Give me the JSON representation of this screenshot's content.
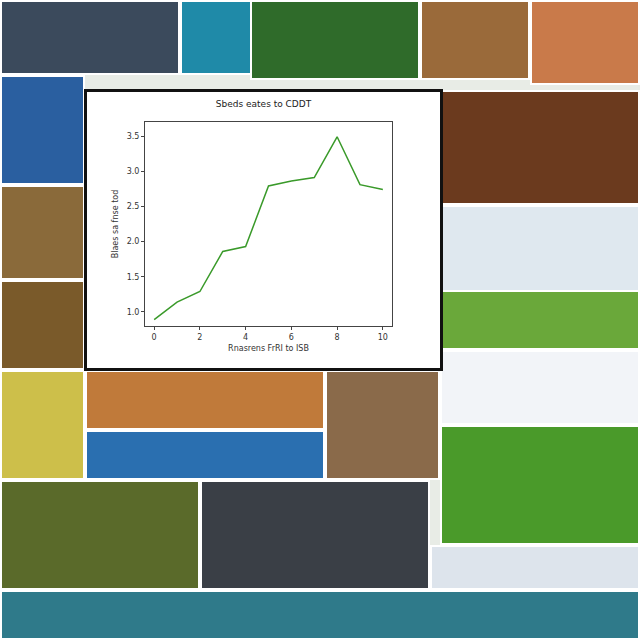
{
  "chart_data": {
    "type": "line",
    "title": "Sbeds eates to CDDT",
    "xlabel": "Rnasrens FrRI to ISB",
    "ylabel": "Blaes sa fnse tod",
    "x": [
      0,
      1,
      2,
      3,
      4,
      5,
      6,
      7,
      8,
      9,
      10
    ],
    "values": [
      0.89,
      1.14,
      1.29,
      1.86,
      1.93,
      2.79,
      2.86,
      2.91,
      3.49,
      2.81,
      2.74
    ],
    "color": "#3a9a2a",
    "xlim": [
      -0.4,
      10.4
    ],
    "xticks": [
      0,
      2,
      4,
      6,
      8,
      10
    ],
    "ylim": [
      0.8,
      3.7
    ],
    "yticks": [
      {
        "value": 1,
        "label": "1.0"
      },
      {
        "value": 1.5,
        "label": "1.5"
      },
      {
        "value": 2,
        "label": "2.0"
      },
      {
        "value": 2.5,
        "label": "2.5"
      },
      {
        "value": 3,
        "label": "3.0"
      },
      {
        "value": 3.5,
        "label": "3.5"
      }
    ],
    "grid": false
  }
}
